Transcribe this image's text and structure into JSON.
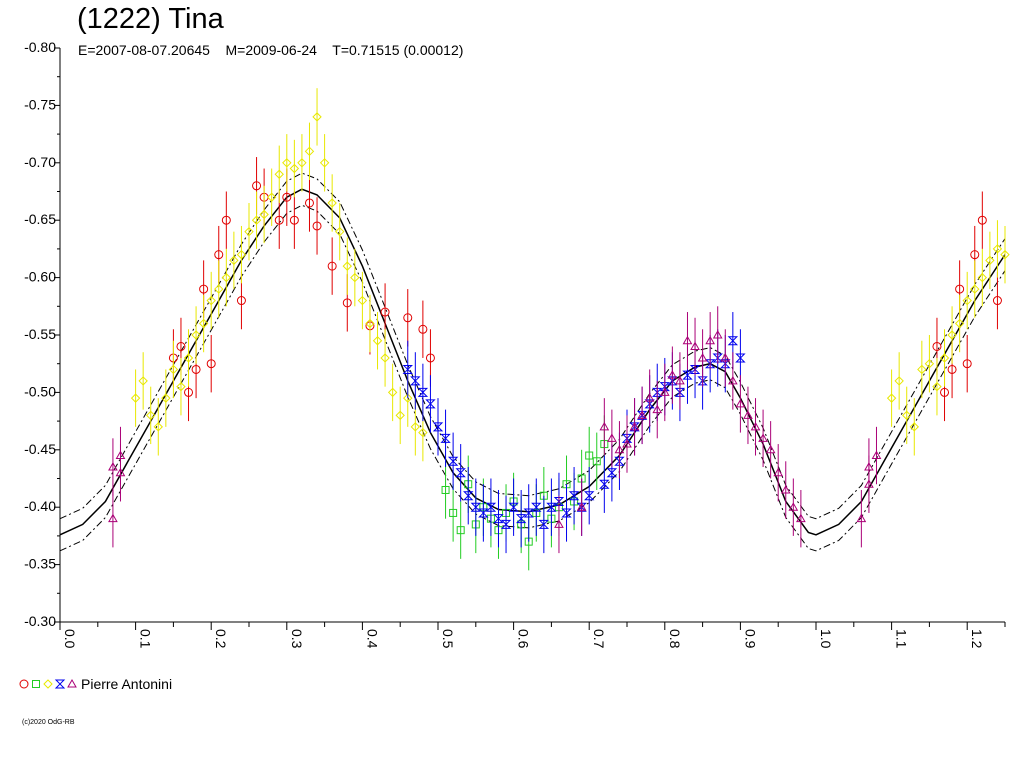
{
  "header": {
    "title": "(1222) Tina",
    "subtitle": "E=2007-08-07.20645    M=2009-06-24    T=0.71515 (0.00012)"
  },
  "legend": {
    "observer": "Pierre Antonini",
    "symbols": [
      {
        "shape": "circle",
        "color": "#e00000"
      },
      {
        "shape": "square",
        "color": "#22cc22"
      },
      {
        "shape": "diamond",
        "color": "#e8e800"
      },
      {
        "shape": "hourglass",
        "color": "#0000ee"
      },
      {
        "shape": "triangle",
        "color": "#aa0077"
      }
    ]
  },
  "footer": {
    "copyright": "(c)2020 OdG-RB"
  },
  "chart_data": {
    "type": "scatter",
    "title": "(1222) Tina",
    "xlim": [
      0,
      1.25
    ],
    "ylim": [
      -0.3,
      -0.8
    ],
    "x_ticks": [
      "0.0",
      "0.1",
      "0.2",
      "0.3",
      "0.4",
      "0.5",
      "0.6",
      "0.7",
      "0.8",
      "0.9",
      "1.0",
      "1.1",
      "1.2"
    ],
    "y_ticks": [
      "-0.80",
      "-0.75",
      "-0.70",
      "-0.65",
      "-0.60",
      "-0.55",
      "-0.50",
      "-0.45",
      "-0.40",
      "-0.35",
      "-0.30"
    ],
    "fit_curve": {
      "style": "solid with dash-dot uncertainty envelope",
      "envelope": 0.014,
      "points": [
        [
          0.0,
          -0.376
        ],
        [
          0.03,
          -0.385
        ],
        [
          0.06,
          -0.405
        ],
        [
          0.09,
          -0.44
        ],
        [
          0.12,
          -0.475
        ],
        [
          0.15,
          -0.51
        ],
        [
          0.18,
          -0.545
        ],
        [
          0.21,
          -0.58
        ],
        [
          0.24,
          -0.615
        ],
        [
          0.27,
          -0.645
        ],
        [
          0.3,
          -0.67
        ],
        [
          0.32,
          -0.677
        ],
        [
          0.34,
          -0.672
        ],
        [
          0.37,
          -0.652
        ],
        [
          0.4,
          -0.61
        ],
        [
          0.43,
          -0.56
        ],
        [
          0.46,
          -0.51
        ],
        [
          0.49,
          -0.465
        ],
        [
          0.52,
          -0.43
        ],
        [
          0.55,
          -0.408
        ],
        [
          0.58,
          -0.398
        ],
        [
          0.62,
          -0.396
        ],
        [
          0.66,
          -0.402
        ],
        [
          0.7,
          -0.418
        ],
        [
          0.74,
          -0.445
        ],
        [
          0.78,
          -0.485
        ],
        [
          0.81,
          -0.51
        ],
        [
          0.84,
          -0.522
        ],
        [
          0.86,
          -0.525
        ],
        [
          0.88,
          -0.518
        ],
        [
          0.9,
          -0.495
        ],
        [
          0.93,
          -0.455
        ],
        [
          0.96,
          -0.405
        ],
        [
          0.99,
          -0.378
        ],
        [
          1.0,
          -0.376
        ],
        [
          1.03,
          -0.385
        ],
        [
          1.06,
          -0.405
        ],
        [
          1.09,
          -0.44
        ],
        [
          1.12,
          -0.475
        ],
        [
          1.15,
          -0.51
        ],
        [
          1.18,
          -0.545
        ],
        [
          1.21,
          -0.58
        ],
        [
          1.25,
          -0.62
        ]
      ]
    },
    "series": [
      {
        "symbol": "circle",
        "color": "#e00000",
        "error": 0.025,
        "points": [
          [
            0.2,
            -0.525
          ],
          [
            0.21,
            -0.62
          ],
          [
            0.22,
            -0.65
          ],
          [
            0.24,
            -0.58
          ],
          [
            0.26,
            -0.68
          ],
          [
            0.27,
            -0.67
          ],
          [
            0.29,
            -0.65
          ],
          [
            0.3,
            -0.67
          ],
          [
            0.31,
            -0.65
          ],
          [
            0.33,
            -0.665
          ],
          [
            0.34,
            -0.645
          ],
          [
            0.36,
            -0.61
          ],
          [
            0.38,
            -0.578
          ],
          [
            0.41,
            -0.558
          ],
          [
            0.43,
            -0.57
          ],
          [
            0.46,
            -0.565
          ],
          [
            0.48,
            -0.555
          ],
          [
            0.49,
            -0.53
          ],
          [
            0.16,
            -0.54
          ],
          [
            0.17,
            -0.5
          ],
          [
            0.18,
            -0.52
          ],
          [
            0.19,
            -0.59
          ],
          [
            0.15,
            -0.53
          ],
          [
            1.16,
            -0.54
          ],
          [
            1.17,
            -0.5
          ],
          [
            1.18,
            -0.52
          ],
          [
            1.19,
            -0.59
          ],
          [
            1.2,
            -0.525
          ],
          [
            1.21,
            -0.62
          ],
          [
            1.22,
            -0.65
          ],
          [
            1.24,
            -0.58
          ]
        ]
      },
      {
        "symbol": "square",
        "color": "#22cc22",
        "error": 0.025,
        "points": [
          [
            0.51,
            -0.415
          ],
          [
            0.52,
            -0.395
          ],
          [
            0.53,
            -0.38
          ],
          [
            0.54,
            -0.42
          ],
          [
            0.55,
            -0.385
          ],
          [
            0.56,
            -0.4
          ],
          [
            0.57,
            -0.39
          ],
          [
            0.58,
            -0.38
          ],
          [
            0.59,
            -0.395
          ],
          [
            0.6,
            -0.405
          ],
          [
            0.61,
            -0.385
          ],
          [
            0.62,
            -0.37
          ],
          [
            0.63,
            -0.395
          ],
          [
            0.64,
            -0.41
          ],
          [
            0.65,
            -0.39
          ],
          [
            0.66,
            -0.4
          ],
          [
            0.67,
            -0.42
          ],
          [
            0.68,
            -0.405
          ],
          [
            0.69,
            -0.425
          ],
          [
            0.7,
            -0.445
          ],
          [
            0.71,
            -0.44
          ],
          [
            0.72,
            -0.455
          ]
        ]
      },
      {
        "symbol": "diamond",
        "color": "#e8e800",
        "error": 0.025,
        "points": [
          [
            0.1,
            -0.495
          ],
          [
            0.11,
            -0.51
          ],
          [
            0.12,
            -0.48
          ],
          [
            0.13,
            -0.47
          ],
          [
            0.14,
            -0.495
          ],
          [
            0.15,
            -0.52
          ],
          [
            0.16,
            -0.505
          ],
          [
            0.17,
            -0.53
          ],
          [
            0.18,
            -0.55
          ],
          [
            0.19,
            -0.56
          ],
          [
            0.2,
            -0.58
          ],
          [
            0.21,
            -0.59
          ],
          [
            0.22,
            -0.6
          ],
          [
            0.23,
            -0.615
          ],
          [
            0.24,
            -0.62
          ],
          [
            0.25,
            -0.64
          ],
          [
            0.26,
            -0.65
          ],
          [
            0.27,
            -0.655
          ],
          [
            0.28,
            -0.67
          ],
          [
            0.29,
            -0.69
          ],
          [
            0.3,
            -0.7
          ],
          [
            0.31,
            -0.695
          ],
          [
            0.32,
            -0.7
          ],
          [
            0.33,
            -0.71
          ],
          [
            0.34,
            -0.74
          ],
          [
            0.35,
            -0.7
          ],
          [
            0.36,
            -0.665
          ],
          [
            0.37,
            -0.64
          ],
          [
            0.38,
            -0.61
          ],
          [
            0.39,
            -0.6
          ],
          [
            0.4,
            -0.58
          ],
          [
            0.41,
            -0.56
          ],
          [
            0.42,
            -0.545
          ],
          [
            0.43,
            -0.53
          ],
          [
            0.44,
            -0.5
          ],
          [
            0.45,
            -0.48
          ],
          [
            0.46,
            -0.495
          ],
          [
            0.47,
            -0.47
          ],
          [
            0.48,
            -0.465
          ],
          [
            1.1,
            -0.495
          ],
          [
            1.11,
            -0.51
          ],
          [
            1.12,
            -0.48
          ],
          [
            1.13,
            -0.47
          ],
          [
            1.14,
            -0.52
          ],
          [
            1.15,
            -0.525
          ],
          [
            1.16,
            -0.505
          ],
          [
            1.17,
            -0.53
          ],
          [
            1.18,
            -0.55
          ],
          [
            1.19,
            -0.56
          ],
          [
            1.2,
            -0.58
          ],
          [
            1.21,
            -0.59
          ],
          [
            1.22,
            -0.6
          ],
          [
            1.23,
            -0.615
          ],
          [
            1.24,
            -0.625
          ],
          [
            1.25,
            -0.62
          ]
        ]
      },
      {
        "symbol": "hourglass",
        "color": "#0000ee",
        "error": 0.025,
        "points": [
          [
            0.46,
            -0.52
          ],
          [
            0.47,
            -0.51
          ],
          [
            0.48,
            -0.5
          ],
          [
            0.49,
            -0.49
          ],
          [
            0.5,
            -0.47
          ],
          [
            0.51,
            -0.46
          ],
          [
            0.52,
            -0.44
          ],
          [
            0.53,
            -0.43
          ],
          [
            0.54,
            -0.41
          ],
          [
            0.55,
            -0.4
          ],
          [
            0.56,
            -0.395
          ],
          [
            0.57,
            -0.4
          ],
          [
            0.58,
            -0.39
          ],
          [
            0.59,
            -0.385
          ],
          [
            0.6,
            -0.4
          ],
          [
            0.61,
            -0.39
          ],
          [
            0.62,
            -0.395
          ],
          [
            0.63,
            -0.4
          ],
          [
            0.64,
            -0.385
          ],
          [
            0.65,
            -0.4
          ],
          [
            0.66,
            -0.405
          ],
          [
            0.67,
            -0.395
          ],
          [
            0.68,
            -0.41
          ],
          [
            0.69,
            -0.4
          ],
          [
            0.7,
            -0.41
          ],
          [
            0.72,
            -0.42
          ],
          [
            0.73,
            -0.43
          ],
          [
            0.74,
            -0.44
          ],
          [
            0.75,
            -0.46
          ],
          [
            0.76,
            -0.47
          ],
          [
            0.77,
            -0.48
          ],
          [
            0.78,
            -0.49
          ],
          [
            0.79,
            -0.5
          ],
          [
            0.8,
            -0.505
          ],
          [
            0.81,
            -0.51
          ],
          [
            0.82,
            -0.5
          ],
          [
            0.83,
            -0.515
          ],
          [
            0.84,
            -0.52
          ],
          [
            0.85,
            -0.51
          ],
          [
            0.86,
            -0.525
          ],
          [
            0.87,
            -0.53
          ],
          [
            0.88,
            -0.525
          ],
          [
            0.89,
            -0.545
          ],
          [
            0.9,
            -0.53
          ]
        ]
      },
      {
        "symbol": "triangle",
        "color": "#aa0077",
        "error": 0.025,
        "points": [
          [
            0.07,
            -0.39
          ],
          [
            0.07,
            -0.435
          ],
          [
            0.08,
            -0.445
          ],
          [
            0.08,
            -0.43
          ],
          [
            0.72,
            -0.47
          ],
          [
            0.73,
            -0.46
          ],
          [
            0.74,
            -0.45
          ],
          [
            0.75,
            -0.455
          ],
          [
            0.76,
            -0.47
          ],
          [
            0.77,
            -0.48
          ],
          [
            0.78,
            -0.495
          ],
          [
            0.79,
            -0.485
          ],
          [
            0.8,
            -0.5
          ],
          [
            0.81,
            -0.515
          ],
          [
            0.82,
            -0.51
          ],
          [
            0.83,
            -0.545
          ],
          [
            0.84,
            -0.54
          ],
          [
            0.85,
            -0.53
          ],
          [
            0.86,
            -0.545
          ],
          [
            0.87,
            -0.55
          ],
          [
            0.88,
            -0.53
          ],
          [
            0.89,
            -0.51
          ],
          [
            0.9,
            -0.49
          ],
          [
            0.91,
            -0.48
          ],
          [
            0.92,
            -0.47
          ],
          [
            0.93,
            -0.46
          ],
          [
            0.94,
            -0.45
          ],
          [
            0.95,
            -0.43
          ],
          [
            0.96,
            -0.415
          ],
          [
            0.97,
            -0.4
          ],
          [
            0.98,
            -0.39
          ],
          [
            0.66,
            -0.385
          ],
          [
            0.69,
            -0.4
          ],
          [
            1.07,
            -0.435
          ],
          [
            1.08,
            -0.445
          ],
          [
            1.07,
            -0.42
          ],
          [
            1.06,
            -0.39
          ]
        ]
      }
    ],
    "grid": false,
    "legend_position": "bottom-left"
  }
}
